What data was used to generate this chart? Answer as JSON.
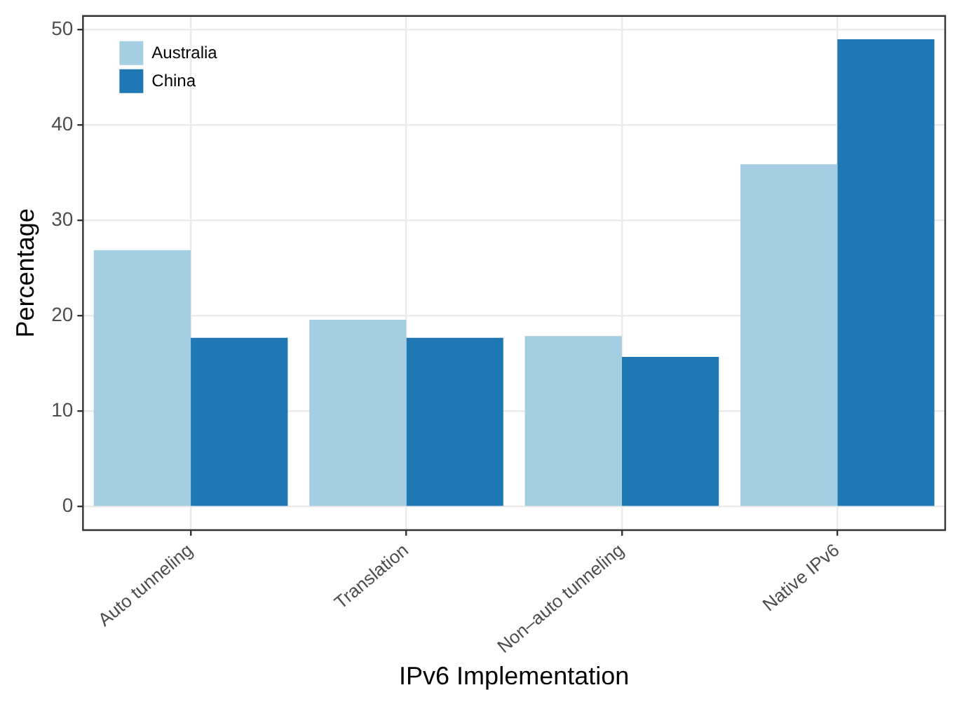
{
  "chart_data": {
    "type": "bar",
    "xlabel": "IPv6 Implementation",
    "ylabel": "Percentage",
    "categories": [
      "Auto tunneling",
      "Translation",
      "Non–auto tunneling",
      "Native IPv6"
    ],
    "series": [
      {
        "name": "Australia",
        "color": "#a6cee3",
        "values": [
          26.9,
          19.6,
          17.9,
          35.9
        ]
      },
      {
        "name": "China",
        "color": "#1f78b4",
        "values": [
          17.7,
          17.7,
          15.7,
          49.0
        ]
      }
    ],
    "ylim": [
      -2.45,
      51.45
    ],
    "yticks": [
      0,
      10,
      20,
      30,
      40,
      50
    ],
    "grid": true,
    "legend": "top left"
  }
}
